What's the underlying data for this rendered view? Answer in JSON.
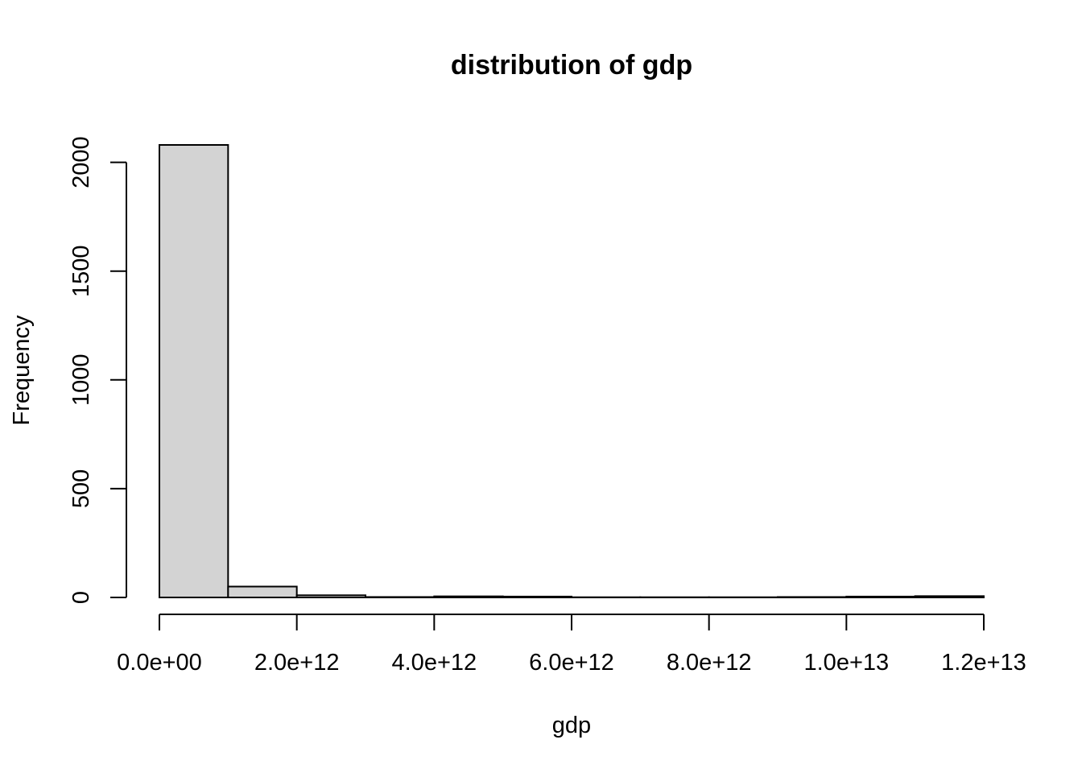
{
  "chart_data": {
    "type": "bar",
    "subtype": "histogram",
    "title": "distribution of gdp",
    "xlabel": "gdp",
    "ylabel": "Frequency",
    "bin_edges": [
      0,
      1000000000000.0,
      2000000000000.0,
      3000000000000.0,
      4000000000000.0,
      5000000000000.0,
      6000000000000.0,
      7000000000000.0,
      8000000000000.0,
      9000000000000.0,
      10000000000000.0,
      11000000000000.0,
      12000000000000.0
    ],
    "values": [
      2080,
      50,
      10,
      2,
      5,
      4,
      1,
      1,
      1,
      2,
      4,
      6
    ],
    "xlim": [
      0,
      12000000000000.0
    ],
    "ylim": [
      0,
      2080
    ],
    "x_ticks": [
      {
        "value": 0,
        "label": "0.0e+00"
      },
      {
        "value": 2000000000000.0,
        "label": "2.0e+12"
      },
      {
        "value": 4000000000000.0,
        "label": "4.0e+12"
      },
      {
        "value": 6000000000000.0,
        "label": "6.0e+12"
      },
      {
        "value": 8000000000000.0,
        "label": "8.0e+12"
      },
      {
        "value": 10000000000000.0,
        "label": "1.0e+13"
      },
      {
        "value": 12000000000000.0,
        "label": "1.2e+13"
      }
    ],
    "y_ticks": [
      {
        "value": 0,
        "label": "0"
      },
      {
        "value": 500,
        "label": "500"
      },
      {
        "value": 1000,
        "label": "1000"
      },
      {
        "value": 1500,
        "label": "1500"
      },
      {
        "value": 2000,
        "label": "2000"
      }
    ],
    "bar_fill": "#d3d3d3",
    "bar_stroke": "#000000",
    "grid": false,
    "legend": "none"
  }
}
